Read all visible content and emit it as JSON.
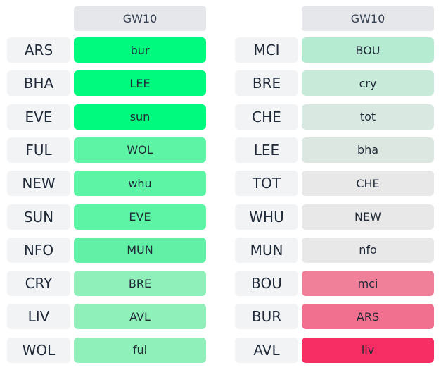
{
  "tables": [
    {
      "header": "GW10",
      "rows": [
        {
          "team": "ARS",
          "fixture": "bur",
          "color": "#00fa7d"
        },
        {
          "team": "BHA",
          "fixture": "LEE",
          "color": "#00fa7d"
        },
        {
          "team": "EVE",
          "fixture": "sun",
          "color": "#00fa7d"
        },
        {
          "team": "FUL",
          "fixture": "WOL",
          "color": "#5ef4a6"
        },
        {
          "team": "NEW",
          "fixture": "whu",
          "color": "#5ef4a6"
        },
        {
          "team": "SUN",
          "fixture": "EVE",
          "color": "#5ef4a6"
        },
        {
          "team": "NFO",
          "fixture": "MUN",
          "color": "#62f0a7"
        },
        {
          "team": "CRY",
          "fixture": "BRE",
          "color": "#8ff0ba"
        },
        {
          "team": "LIV",
          "fixture": "AVL",
          "color": "#8ff0ba"
        },
        {
          "team": "WOL",
          "fixture": "ful",
          "color": "#8ff0ba"
        }
      ]
    },
    {
      "header": "GW10",
      "rows": [
        {
          "team": "MCI",
          "fixture": "BOU",
          "color": "#b5ebd1"
        },
        {
          "team": "BRE",
          "fixture": "cry",
          "color": "#c8ebd9"
        },
        {
          "team": "CHE",
          "fixture": "tot",
          "color": "#d9e8e0"
        },
        {
          "team": "LEE",
          "fixture": "bha",
          "color": "#dde7e2"
        },
        {
          "team": "TOT",
          "fixture": "CHE",
          "color": "#e8e8e8"
        },
        {
          "team": "WHU",
          "fixture": "NEW",
          "color": "#e8e8e8"
        },
        {
          "team": "MUN",
          "fixture": "nfo",
          "color": "#e8e8e8"
        },
        {
          "team": "BOU",
          "fixture": "mci",
          "color": "#f07f9a"
        },
        {
          "team": "BUR",
          "fixture": "ARS",
          "color": "#f2708f"
        },
        {
          "team": "AVL",
          "fixture": "liv",
          "color": "#f62e63"
        }
      ]
    }
  ]
}
